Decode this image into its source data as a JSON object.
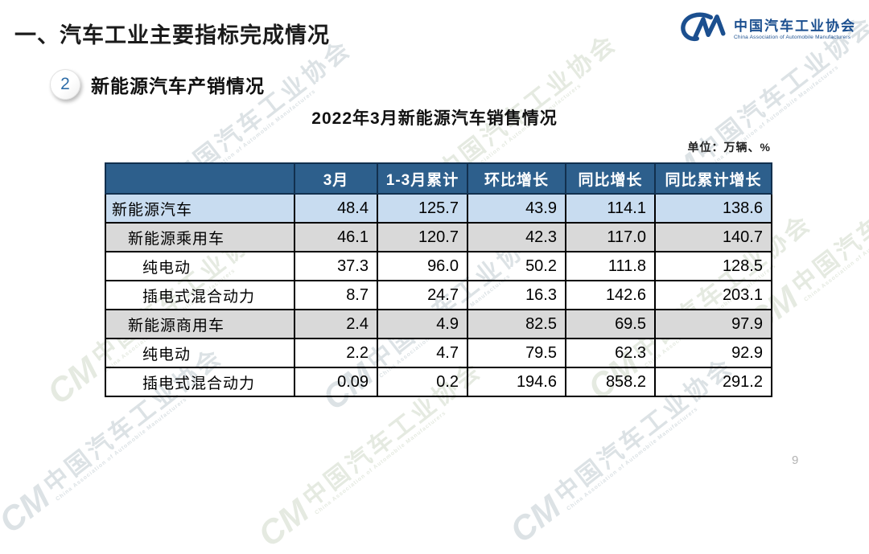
{
  "slide": {
    "main_title": "一、汽车工业主要指标完成情况",
    "section": {
      "badge": "2",
      "title": "新能源汽车产销情况"
    },
    "table_title": "2022年3月新能源汽车销售情况",
    "unit_label": "单位：万辆、%",
    "page_number": "9"
  },
  "logo": {
    "monogram": "CM",
    "name_cn": "中国汽车工业协会",
    "name_en": "China Association of Automobile Manufacturers"
  },
  "watermark": {
    "monogram": "CM",
    "text_cn": "中国汽车工业协会",
    "text_en": "China Association of Automobile Manufacturers"
  },
  "colors": {
    "table_header_bg": "#2d5f8c",
    "row_highlight_bg": "#c8dcf0",
    "row_alt_bg": "#d9d9d9",
    "logo_blue": "#1b4f8f",
    "badge_number_blue": "#2e6da8",
    "page_number_gray": "#b3b3b3"
  },
  "chart_data": {
    "type": "table",
    "title": "2022年3月新能源汽车销售情况",
    "unit": "万辆、%",
    "columns": [
      "",
      "3月",
      "1-3月累计",
      "环比增长",
      "同比增长",
      "同比累计增长"
    ],
    "rows": [
      {
        "label": "新能源汽车",
        "indent": 0,
        "emphasis": "highlight",
        "values": [
          "48.4",
          "125.7",
          "43.9",
          "114.1",
          "138.6"
        ]
      },
      {
        "label": "新能源乘用车",
        "indent": 1,
        "emphasis": "alt",
        "values": [
          "46.1",
          "120.7",
          "42.3",
          "117.0",
          "140.7"
        ]
      },
      {
        "label": "纯电动",
        "indent": 2,
        "emphasis": "plain",
        "values": [
          "37.3",
          "96.0",
          "50.2",
          "111.8",
          "128.5"
        ]
      },
      {
        "label": "插电式混合动力",
        "indent": 2,
        "emphasis": "plain",
        "values": [
          "8.7",
          "24.7",
          "16.3",
          "142.6",
          "203.1"
        ]
      },
      {
        "label": "新能源商用车",
        "indent": 1,
        "emphasis": "alt",
        "values": [
          "2.4",
          "4.9",
          "82.5",
          "69.5",
          "97.9"
        ]
      },
      {
        "label": "纯电动",
        "indent": 2,
        "emphasis": "plain",
        "values": [
          "2.2",
          "4.7",
          "79.5",
          "62.3",
          "92.9"
        ]
      },
      {
        "label": "插电式混合动力",
        "indent": 2,
        "emphasis": "plain",
        "values": [
          "0.09",
          "0.2",
          "194.6",
          "858.2",
          "291.2"
        ]
      }
    ]
  }
}
